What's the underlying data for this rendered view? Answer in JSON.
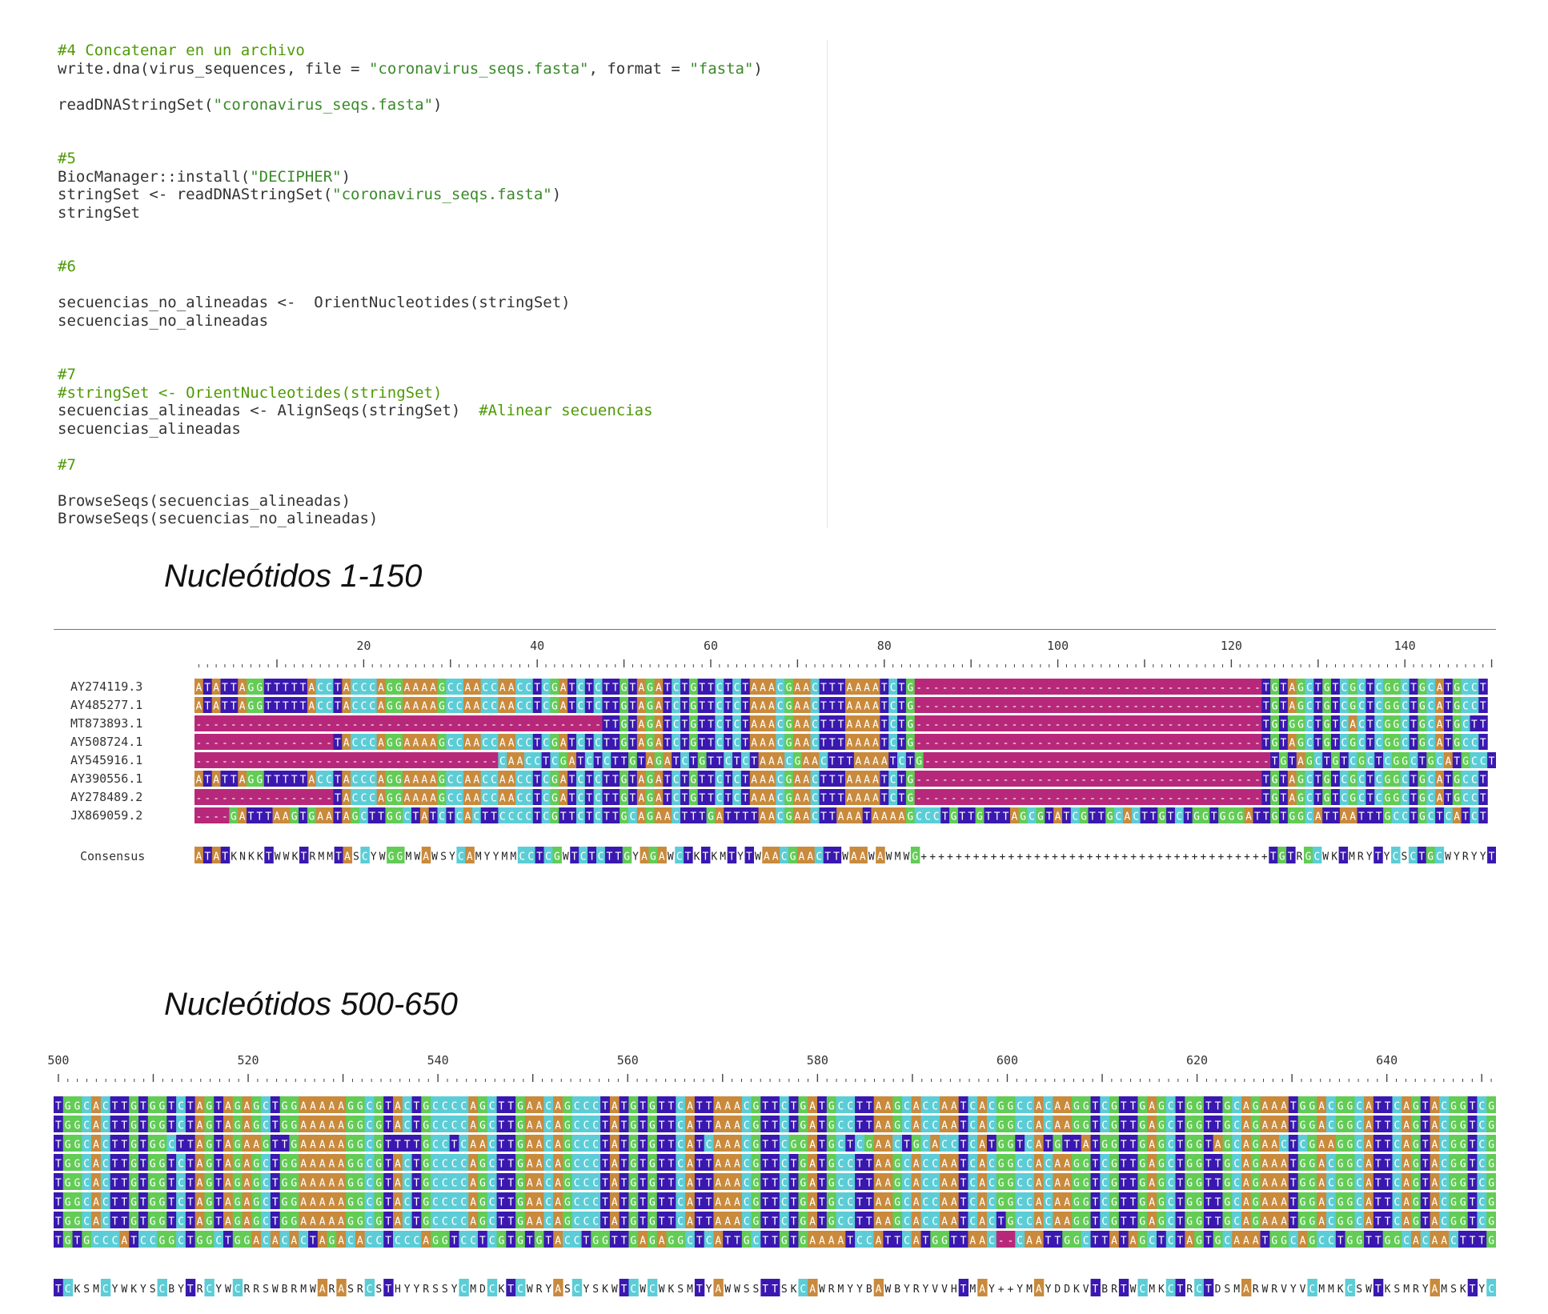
{
  "code": {
    "lines": [
      {
        "t": "comment",
        "text": "#4 Concatenar en un archivo"
      },
      {
        "t": "code",
        "text": "write.dna(virus_sequences, file = \"coronavirus_seqs.fasta\", format = \"fasta\")"
      },
      {
        "t": "blank",
        "text": ""
      },
      {
        "t": "code",
        "text": "readDNAStringSet(\"coronavirus_seqs.fasta\")"
      },
      {
        "t": "blank",
        "text": ""
      },
      {
        "t": "blank",
        "text": ""
      },
      {
        "t": "comment",
        "text": "#5"
      },
      {
        "t": "code",
        "text": "BiocManager::install(\"DECIPHER\")"
      },
      {
        "t": "code",
        "text": "stringSet <- readDNAStringSet(\"coronavirus_seqs.fasta\")"
      },
      {
        "t": "code",
        "text": "stringSet"
      },
      {
        "t": "blank",
        "text": ""
      },
      {
        "t": "blank",
        "text": ""
      },
      {
        "t": "comment",
        "text": "#6"
      },
      {
        "t": "blank",
        "text": ""
      },
      {
        "t": "code",
        "text": "secuencias_no_alineadas <-  OrientNucleotides(stringSet)"
      },
      {
        "t": "code",
        "text": "secuencias_no_alineadas"
      },
      {
        "t": "blank",
        "text": ""
      },
      {
        "t": "blank",
        "text": ""
      },
      {
        "t": "comment",
        "text": "#7"
      },
      {
        "t": "comment",
        "text": "#stringSet <- OrientNucleotides(stringSet)"
      },
      {
        "t": "code",
        "text": "secuencias_alineadas <- AlignSeqs(stringSet)  #Alinear secuencias"
      },
      {
        "t": "code",
        "text": "secuencias_alineadas"
      },
      {
        "t": "blank",
        "text": ""
      },
      {
        "t": "comment",
        "text": "#7"
      },
      {
        "t": "blank",
        "text": ""
      },
      {
        "t": "code",
        "text": "BrowseSeqs(secuencias_alineadas)"
      },
      {
        "t": "code",
        "text": "BrowseSeqs(secuencias_no_alineadas)"
      }
    ]
  },
  "section1": {
    "heading": "Nucleótidos 1-150",
    "ruler": [
      "20",
      "40",
      "60",
      "80",
      "100",
      "120",
      "140"
    ],
    "labels": [
      "AY274119.3",
      "AY485277.1",
      "MT873893.1",
      "AY508724.1",
      "AY545916.1",
      "AY390556.1",
      "AY278489.2",
      "JX869059.2"
    ],
    "rows": [
      "ATATTAGGTTTTTACCTACCCAGGAAAAGCCAACCAACCTCGATCTCTTGTAGATCTGTTCTCTAAACGAACTTTAAAATCTG----------------------------------------TGTAGCTGTCGCTCGGCTGCATGCCT",
      "ATATTAGGTTTTTACCTACCCAGGAAAAGCCAACCAACCTCGATCTCTTGTAGATCTGTTCTCTAAACGAACTTTAAAATCTG----------------------------------------TGTAGCTGTCGCTCGGCTGCATGCCT",
      "-----------------------------------------------TTGTAGATCTGTTCTCTAAACGAACTTTAAAATCTG----------------------------------------TGTGGCTGTCACTCGGCTGCATGCTT",
      "----------------TACCCAGGAAAAGCCAACCAACCTCGATCTCTTGTAGATCTGTTCTCTAAACGAACTTTAAAATCTG----------------------------------------TGTAGCTGTCGCTCGGCTGCATGCCT",
      "-----------------------------------CAACCTCGATCTCTTGTAGATCTGTTCTCTAAACGAACTTTAAAATCTG----------------------------------------TGTAGCTGTCGCTCGGCTGCATGCCT",
      "ATATTAGGTTTTTACCTACCCAGGAAAAGCCAACCAACCTCGATCTCTTGTAGATCTGTTCTCTAAACGAACTTTAAAATCTG----------------------------------------TGTAGCTGTCGCTCGGCTGCATGCCT",
      "----------------TACCCAGGAAAAGCCAACCAACCTCGATCTCTTGTAGATCTGTTCTCTAAACGAACTTTAAAATCTG----------------------------------------TGTAGCTGTCGCTCGGCTGCATGCCT",
      "----GATTTAAGTGAATAGCTTGGCTATCTCACTTCCCCTCGTTCTCTTGCAGAACTTTGATTTTAACGAACTTAAATAAAAGCCCTGTTGTTTAGCGTATCGTTGCACTTGTCTGGTGGGATTGTGGCATTAATTTGCCTGCTCATCT"
    ],
    "consensus_label": "Consensus",
    "consensus": "ATATKNKKTWWKTRMMTASCYWGGMWAWSYCAMYYMMCCTCGWTCTCTTGYAGAWCTKTKMTYTWAACGAACTTWAAWAWMWG++++++++++++++++++++++++++++++++++++++++TGTRGCWKTMRYTYCSCTGCWYRYYT"
  },
  "section2": {
    "heading": "Nucleótidos 500-650",
    "ruler": [
      "500",
      "520",
      "540",
      "560",
      "580",
      "600",
      "620",
      "640"
    ],
    "rows": [
      "TGGCACTTGTGGTCTAGTAGAGCTGGAAAAAGGCGTACTGCCCCAGCTTGAACAGCCCTATGTGTTCATTAAACGTTCTGATGCCTTAAGCACCAATCACGGCCACAAGGTCGTTGAGCTGGTTGCAGAAATGGACGGCATTCAGTACGGTCG",
      "TGGCACTTGTGGTCTAGTAGAGCTGGAAAAAGGCGTACTGCCCCAGCTTGAACAGCCCTATGTGTTCATTAAACGTTCTGATGCCTTAAGCACCAATCACGGCCACAAGGTCGTTGAGCTGGTTGCAGAAATGGACGGCATTCAGTACGGTCG",
      "TGGCACTTGTGGCTTAGTAGAAGTTGAAAAAGGCGTTTTGCCTCAACTTGAACAGCCCTATGTGTTCATCAAACGTTCGGATGCTCGAACTGCACCTCATGGTCATGTTATGGTTGAGCTGGTAGCAGAACTCGAAGGCATTCAGTACGGTCG",
      "TGGCACTTGTGGTCTAGTAGAGCTGGAAAAAGGCGTACTGCCCCAGCTTGAACAGCCCTATGTGTTCATTAAACGTTCTGATGCCTTAAGCACCAATCACGGCCACAAGGTCGTTGAGCTGGTTGCAGAAATGGACGGCATTCAGTACGGTCG",
      "TGGCACTTGTGGTCTAGTAGAGCTGGAAAAAGGCGTACTGCCCCAGCTTGAACAGCCCTATGTGTTCATTAAACGTTCTGATGCCTTAAGCACCAATCACGGCCACAAGGTCGTTGAGCTGGTTGCAGAAATGGACGGCATTCAGTACGGTCG",
      "TGGCACTTGTGGTCTAGTAGAGCTGGAAAAAGGCGTACTGCCCCAGCTTGAACAGCCCTATGTGTTCATTAAACGTTCTGATGCCTTAAGCACCAATCACGGCCACAAGGTCGTTGAGCTGGTTGCAGAAATGGACGGCATTCAGTACGGTCG",
      "TGGCACTTGTGGTCTAGTAGAGCTGGAAAAAGGCGTACTGCCCCAGCTTGAACAGCCCTATGTGTTCATTAAACGTTCTGATGCCTTAAGCACCAATCACTGCCACAAGGTCGTTGAGCTGGTTGCAGAAATGGACGGCATTCAGTACGGTCG",
      "TGTGCCCATCCGGCTGGCTGGACACACTAGACACCTCCCAGGTCCTCGTGTGTACCTGGTTGAGAGGCTCATTGCTTGTGAAAATCCATTCATGGTTAAC--CAATTGGCTTATAGCTCTAGTGCAAATGGCAGCCTGGTTGGCACAACTTTG"
    ],
    "consensus": "TCKSMCYWKYSCBYTRCYWCRRSWBRMWARASRCSTHYYRSSYCMDCKTCWRYASCYSKWTCWCWKSMTYAWWSSTTSKCAWRMYYBAWBYRYVVHTMAY++YMAYDDKVTBRTWCMKCTRCTDSMARWRVYVCMMKCSWTKSMRYAMSKTYC"
  },
  "colors": {
    "A": "#c98a3c",
    "C": "#5ccdd6",
    "G": "#62cc55",
    "T": "#3a18b0",
    "gap": "#b8287a",
    "other": "#ffffff"
  }
}
